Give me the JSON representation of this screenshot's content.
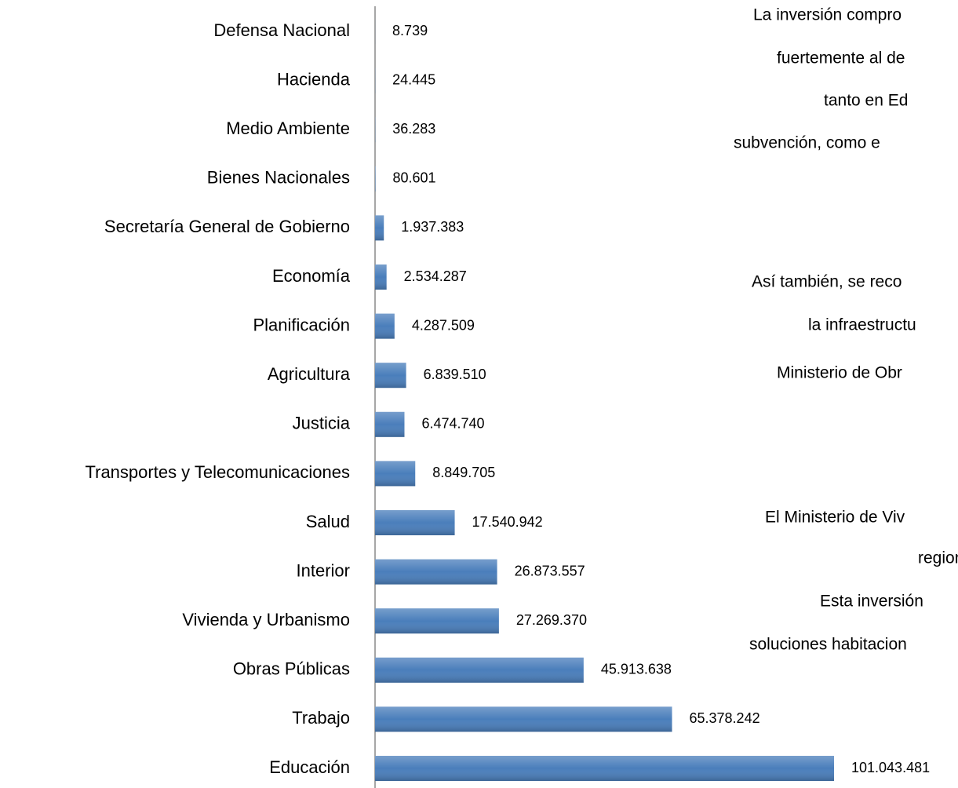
{
  "chart_data": {
    "type": "bar",
    "orientation": "horizontal",
    "categories": [
      "Defensa Nacional",
      "Hacienda",
      "Medio Ambiente",
      "Bienes Nacionales",
      "Secretaría General de Gobierno",
      "Economía",
      "Planificación",
      "Agricultura",
      "Justicia",
      "Transportes y Telecomunicaciones",
      "Salud",
      "Interior",
      "Vivienda y Urbanismo",
      "Obras Públicas",
      "Trabajo",
      "Educación"
    ],
    "values": [
      8739,
      24445,
      36283,
      80601,
      1937383,
      2534287,
      4287509,
      6839510,
      6474740,
      8849705,
      17540942,
      26873557,
      27269370,
      45913638,
      65378242,
      101043481
    ],
    "value_labels": [
      "8.739",
      "24.445",
      "36.283",
      "80.601",
      "1.937.383",
      "2.534.287",
      "4.287.509",
      "6.839.510",
      "6.474.740",
      "8.849.705",
      "17.540.942",
      "26.873.557",
      "27.269.370",
      "45.913.638",
      "65.378.242",
      "101.043.481"
    ],
    "color": "#4a7ebb",
    "xlim": [
      0,
      120000000
    ],
    "annotations": [
      "La inversión compro",
      "fuertemente al de",
      "tanto en Ed",
      "subvención, como e",
      "Así también, se reco",
      "la infraestructu",
      "Ministerio de Obr",
      "El Ministerio de Viv",
      "region",
      "Esta inversión",
      "soluciones habitacion"
    ]
  }
}
